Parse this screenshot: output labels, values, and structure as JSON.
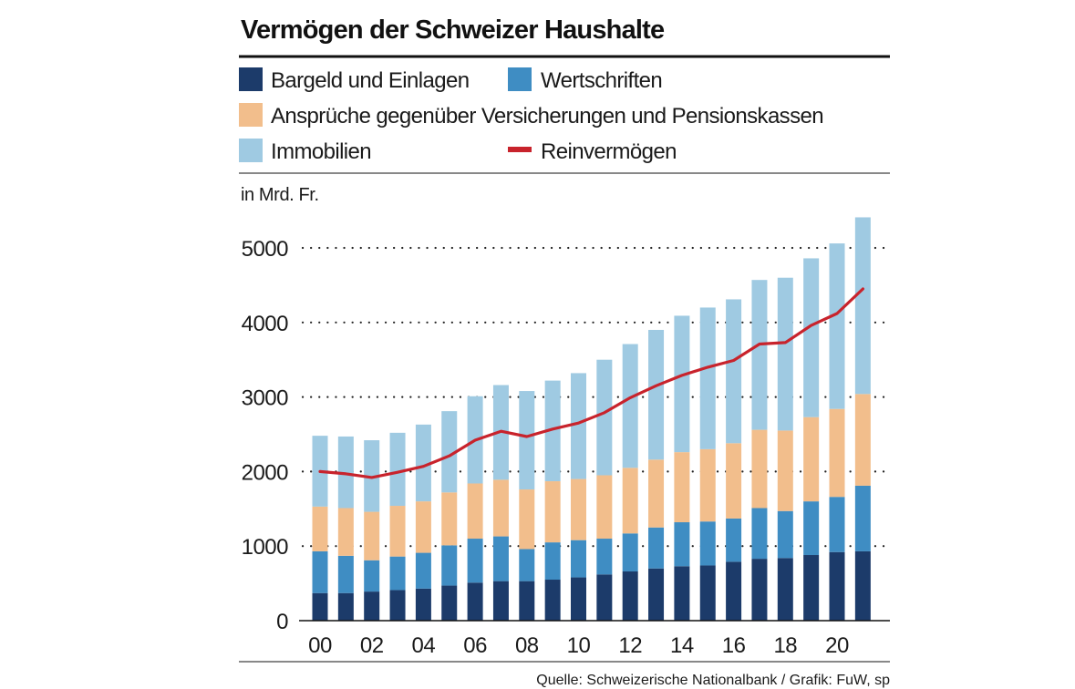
{
  "chart_data": {
    "type": "bar",
    "stacked": true,
    "title": "Vermögen der Schweizer Haushalte",
    "unit_label": "in Mrd. Fr.",
    "source": "Quelle: Schweizerische Nationalbank / Grafik: FuW, sp",
    "ylim": [
      0,
      5500
    ],
    "yticks": [
      0,
      1000,
      2000,
      3000,
      4000,
      5000
    ],
    "x": [
      2000,
      2001,
      2002,
      2003,
      2004,
      2005,
      2006,
      2007,
      2008,
      2009,
      2010,
      2011,
      2012,
      2013,
      2014,
      2015,
      2016,
      2017,
      2018,
      2019,
      2020,
      2021
    ],
    "x_tick_labels": [
      "00",
      "",
      "02",
      "",
      "04",
      "",
      "06",
      "",
      "08",
      "",
      "10",
      "",
      "12",
      "",
      "14",
      "",
      "16",
      "",
      "18",
      "",
      "20",
      ""
    ],
    "series": [
      {
        "name": "Bargeld und Einlagen",
        "color": "#1c3b6a",
        "values": [
          370,
          370,
          390,
          410,
          430,
          470,
          510,
          530,
          530,
          550,
          580,
          620,
          660,
          700,
          730,
          740,
          790,
          830,
          840,
          880,
          920,
          930
        ]
      },
      {
        "name": "Wertschriften",
        "color": "#3f8dc3",
        "values": [
          560,
          500,
          420,
          450,
          480,
          540,
          590,
          600,
          430,
          500,
          500,
          480,
          510,
          550,
          590,
          590,
          580,
          680,
          630,
          720,
          740,
          880
        ]
      },
      {
        "name": "Ansprüche gegenüber Versicherungen und Pensionskassen",
        "color": "#f2be8c",
        "values": [
          600,
          640,
          650,
          680,
          690,
          710,
          740,
          760,
          800,
          820,
          820,
          850,
          880,
          910,
          940,
          970,
          1010,
          1050,
          1080,
          1130,
          1180,
          1230
        ]
      },
      {
        "name": "Immobilien",
        "color": "#9fcae2",
        "values": [
          950,
          960,
          960,
          980,
          1030,
          1090,
          1170,
          1270,
          1320,
          1350,
          1420,
          1550,
          1660,
          1740,
          1830,
          1900,
          1930,
          2010,
          2050,
          2130,
          2220,
          2370
        ]
      }
    ],
    "line": {
      "name": "Reinvermögen",
      "color": "#c8232c",
      "values": [
        2000,
        1970,
        1920,
        1990,
        2070,
        2210,
        2420,
        2540,
        2470,
        2570,
        2650,
        2790,
        2990,
        3150,
        3290,
        3400,
        3490,
        3710,
        3730,
        3960,
        4120,
        4450
      ]
    },
    "legend": [
      {
        "label": "Bargeld und Einlagen",
        "color": "#1c3b6a",
        "kind": "box"
      },
      {
        "label": "Wertschriften",
        "color": "#3f8dc3",
        "kind": "box"
      },
      {
        "label": "Ansprüche gegenüber Versicherungen und Pensionskassen",
        "color": "#f2be8c",
        "kind": "box"
      },
      {
        "label": "Immobilien",
        "color": "#9fcae2",
        "kind": "box"
      },
      {
        "label": "Reinvermögen",
        "color": "#c8232c",
        "kind": "line"
      }
    ],
    "grid": "dotted-horizontal",
    "legend_position": "top"
  }
}
